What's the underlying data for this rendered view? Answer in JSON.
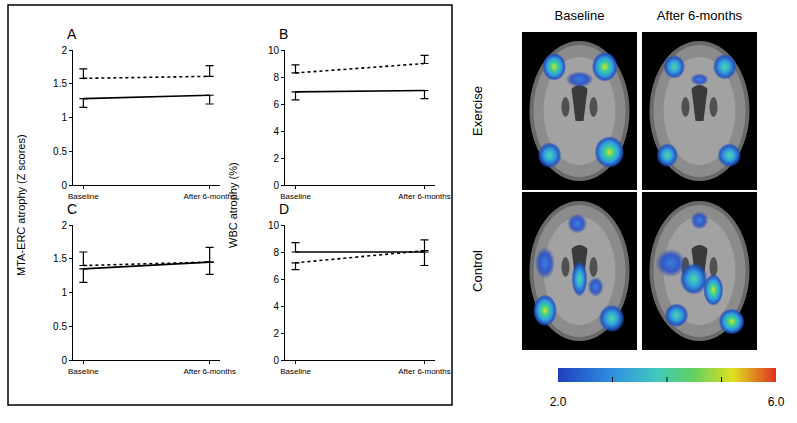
{
  "chart_data": [
    {
      "type": "line",
      "title": "A",
      "ylabel": "MTA-ERC atrophy (Z scores)",
      "categories": [
        "Baseline",
        "After 6-months"
      ],
      "series": [
        {
          "color": "#000000",
          "line_style": "dotted",
          "values": [
            1.58,
            1.61
          ],
          "error_plus": [
            0.14,
            0.16
          ]
        },
        {
          "color": "#000000",
          "line_style": "solid",
          "values": [
            1.28,
            1.33
          ],
          "error_minus": [
            0.13,
            0.13
          ]
        }
      ],
      "ylim": [
        0,
        2
      ],
      "yticks": [
        0,
        0.5,
        1,
        1.5,
        2
      ],
      "grid": false
    },
    {
      "type": "line",
      "title": "B",
      "ylabel": "WBC atrophy (%)",
      "categories": [
        "Baseline",
        "After 6-months"
      ],
      "series": [
        {
          "color": "#000000",
          "line_style": "dotted",
          "values": [
            8.3,
            9.0
          ],
          "error_plus": [
            0.6,
            0.6
          ]
        },
        {
          "color": "#000000",
          "line_style": "solid",
          "values": [
            6.9,
            7.0
          ],
          "error_minus": [
            0.6,
            0.6
          ]
        }
      ],
      "ylim": [
        0,
        10
      ],
      "yticks": [
        0,
        2,
        4,
        6,
        8,
        10
      ],
      "grid": false
    },
    {
      "type": "line",
      "title": "C",
      "categories": [
        "Baseline",
        "After 6-months"
      ],
      "series": [
        {
          "color": "#000000",
          "line_style": "dotted",
          "values": [
            1.4,
            1.45
          ],
          "error_plus": [
            0.2,
            0.22
          ]
        },
        {
          "color": "#000000",
          "line_style": "solid",
          "values": [
            1.35,
            1.45
          ],
          "error_minus": [
            0.2,
            0.18
          ]
        }
      ],
      "ylim": [
        0,
        2
      ],
      "yticks": [
        0,
        0.5,
        1,
        1.5,
        2
      ],
      "grid": false
    },
    {
      "type": "line",
      "title": "D",
      "categories": [
        "Baseline",
        "After 6-months"
      ],
      "series": [
        {
          "color": "#000000",
          "line_style": "dotted",
          "values": [
            7.2,
            8.1
          ],
          "error_minus": [
            0.5,
            1.1
          ]
        },
        {
          "color": "#000000",
          "line_style": "solid",
          "values": [
            8.0,
            8.0
          ],
          "error_plus": [
            0.7,
            0.9
          ]
        }
      ],
      "ylim": [
        0,
        10
      ],
      "yticks": [
        0,
        2,
        4,
        6,
        8,
        10
      ],
      "grid": false
    }
  ],
  "brain_panel": {
    "columns": [
      "Baseline",
      "After 6-months"
    ],
    "rows": [
      "Exercise",
      "Control"
    ],
    "colorbar": {
      "range": [
        2.0,
        6.0
      ],
      "ticks": [
        {
          "value": 2,
          "label": "2.0"
        },
        {
          "value": 6,
          "label": "6.0"
        }
      ],
      "tick_marks": [
        3,
        4,
        5
      ]
    }
  }
}
